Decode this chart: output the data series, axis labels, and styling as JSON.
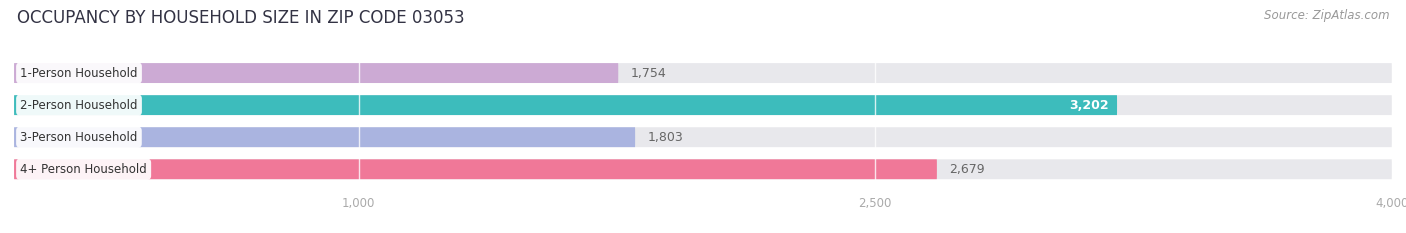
{
  "title": "OCCUPANCY BY HOUSEHOLD SIZE IN ZIP CODE 03053",
  "source": "Source: ZipAtlas.com",
  "categories": [
    "1-Person Household",
    "2-Person Household",
    "3-Person Household",
    "4+ Person Household"
  ],
  "values": [
    1754,
    3202,
    1803,
    2679
  ],
  "bar_colors": [
    "#ccaad4",
    "#3dbcbc",
    "#aab4e0",
    "#f07898"
  ],
  "bar_bg_color": "#e8e8ec",
  "label_colors": [
    "#555555",
    "#ffffff",
    "#555555",
    "#555555"
  ],
  "xlim": [
    0,
    4000
  ],
  "xticks": [
    1000,
    2500,
    4000
  ],
  "xtick_labels": [
    "1,000",
    "2,500",
    "4,000"
  ],
  "title_fontsize": 12,
  "source_fontsize": 8.5,
  "bar_label_fontsize": 9,
  "category_fontsize": 8.5,
  "value_labels": [
    "1,754",
    "3,202",
    "1,803",
    "2,679"
  ],
  "figsize": [
    14.06,
    2.33
  ],
  "dpi": 100,
  "bg_color": "#ffffff"
}
